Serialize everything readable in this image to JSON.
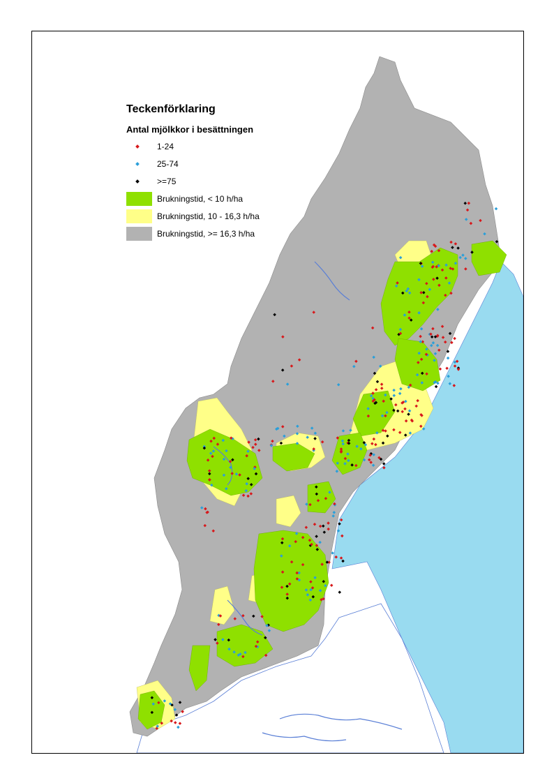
{
  "legend": {
    "title": "Teckenförklaring",
    "subtitle": "Antal mjölkkor i besättningen",
    "dot_items": [
      {
        "label": "1-24",
        "color": "#d7191c"
      },
      {
        "label": "25-74",
        "color": "#2b9fd9"
      },
      {
        "label": ">=75",
        "color": "#000000"
      }
    ],
    "area_items": [
      {
        "label": "Brukningstid, < 10 h/ha",
        "color": "#8fe000"
      },
      {
        "label": "Brukningstid, 10 - 16,3 h/ha",
        "color": "#ffff88"
      },
      {
        "label": "Brukningstid, >= 16,3 h/ha",
        "color": "#b2b2b2"
      }
    ]
  },
  "colors": {
    "sea": "#99dbf0",
    "land_outside": "#ffffff",
    "lakes": "#5a7fd6",
    "frame": "#000000"
  }
}
